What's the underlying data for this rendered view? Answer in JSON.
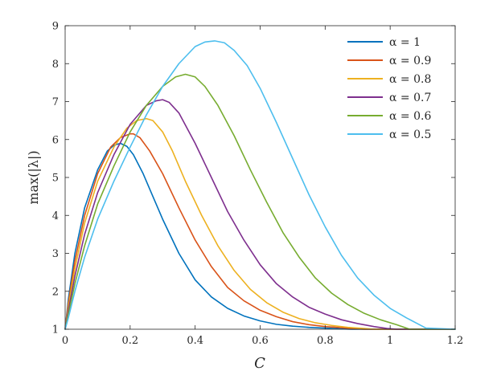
{
  "chart_data": {
    "type": "line",
    "xlabel": "C",
    "ylabel": "max(|λ|)",
    "xlim": [
      0,
      1.2
    ],
    "ylim": [
      1,
      9
    ],
    "xticks": [
      0,
      0.2,
      0.4,
      0.6,
      0.8,
      1,
      1.2
    ],
    "yticks": [
      1,
      2,
      3,
      4,
      5,
      6,
      7,
      8,
      9
    ],
    "xtick_labels": [
      "0",
      "0.2",
      "0.4",
      "0.6",
      "0.8",
      "1",
      "1.2"
    ],
    "ytick_labels": [
      "1",
      "2",
      "3",
      "4",
      "5",
      "6",
      "7",
      "8",
      "9"
    ],
    "grid": false,
    "legend_position": "top-right",
    "series": [
      {
        "name": "α = 1",
        "color": "#0072BD",
        "x": [
          0,
          0.01,
          0.03,
          0.06,
          0.1,
          0.13,
          0.15,
          0.17,
          0.19,
          0.21,
          0.24,
          0.27,
          0.3,
          0.35,
          0.4,
          0.45,
          0.5,
          0.55,
          0.6,
          0.65,
          0.7,
          0.75,
          0.8,
          0.85,
          0.88,
          1.0,
          1.2
        ],
        "y": [
          1,
          1.8,
          3.0,
          4.2,
          5.2,
          5.7,
          5.85,
          5.9,
          5.82,
          5.6,
          5.1,
          4.5,
          3.9,
          3.0,
          2.3,
          1.85,
          1.55,
          1.35,
          1.22,
          1.13,
          1.08,
          1.05,
          1.03,
          1.01,
          1.0,
          1.0,
          1.0
        ]
      },
      {
        "name": "α = 0.9",
        "color": "#D95319",
        "x": [
          0,
          0.01,
          0.03,
          0.06,
          0.1,
          0.14,
          0.17,
          0.2,
          0.21,
          0.23,
          0.26,
          0.3,
          0.35,
          0.4,
          0.45,
          0.5,
          0.55,
          0.6,
          0.65,
          0.7,
          0.75,
          0.8,
          0.85,
          0.88,
          0.92,
          1.0,
          1.2
        ],
        "y": [
          1,
          1.7,
          2.8,
          4.0,
          5.1,
          5.8,
          6.05,
          6.15,
          6.15,
          6.05,
          5.7,
          5.1,
          4.2,
          3.35,
          2.65,
          2.1,
          1.75,
          1.5,
          1.33,
          1.2,
          1.12,
          1.07,
          1.04,
          1.02,
          1.0,
          1.0,
          1.0
        ]
      },
      {
        "name": "α = 0.8",
        "color": "#EDB120",
        "x": [
          0,
          0.01,
          0.03,
          0.06,
          0.1,
          0.15,
          0.19,
          0.22,
          0.25,
          0.27,
          0.3,
          0.33,
          0.37,
          0.42,
          0.47,
          0.52,
          0.57,
          0.62,
          0.67,
          0.72,
          0.77,
          0.82,
          0.87,
          0.92,
          0.95,
          1.0,
          1.2
        ],
        "y": [
          1,
          1.6,
          2.6,
          3.8,
          4.9,
          5.8,
          6.3,
          6.5,
          6.55,
          6.5,
          6.2,
          5.7,
          4.9,
          4.0,
          3.2,
          2.55,
          2.05,
          1.7,
          1.45,
          1.28,
          1.17,
          1.1,
          1.05,
          1.02,
          1.0,
          1.0,
          1.0
        ]
      },
      {
        "name": "α = 0.7",
        "color": "#7E2F8E",
        "x": [
          0,
          0.01,
          0.03,
          0.06,
          0.1,
          0.15,
          0.2,
          0.25,
          0.28,
          0.3,
          0.32,
          0.35,
          0.4,
          0.45,
          0.5,
          0.55,
          0.6,
          0.65,
          0.7,
          0.75,
          0.8,
          0.85,
          0.9,
          0.95,
          0.99,
          1.02,
          1.2
        ],
        "y": [
          1,
          1.5,
          2.4,
          3.5,
          4.6,
          5.6,
          6.4,
          6.9,
          7.02,
          7.05,
          6.98,
          6.7,
          5.9,
          5.0,
          4.1,
          3.35,
          2.7,
          2.2,
          1.85,
          1.58,
          1.4,
          1.25,
          1.15,
          1.07,
          1.02,
          1.0,
          1.0
        ]
      },
      {
        "name": "α = 0.6",
        "color": "#77AC30",
        "x": [
          0,
          0.01,
          0.03,
          0.06,
          0.1,
          0.15,
          0.2,
          0.25,
          0.3,
          0.34,
          0.37,
          0.4,
          0.43,
          0.47,
          0.52,
          0.57,
          0.62,
          0.67,
          0.72,
          0.77,
          0.82,
          0.87,
          0.92,
          0.97,
          1.02,
          1.06,
          1.2
        ],
        "y": [
          1,
          1.4,
          2.2,
          3.2,
          4.3,
          5.3,
          6.2,
          6.9,
          7.4,
          7.65,
          7.72,
          7.65,
          7.4,
          6.9,
          6.1,
          5.2,
          4.35,
          3.55,
          2.9,
          2.35,
          1.95,
          1.65,
          1.42,
          1.25,
          1.12,
          1.0,
          1.0
        ]
      },
      {
        "name": "α = 0.5",
        "color": "#4DBEEE",
        "x": [
          0,
          0.01,
          0.03,
          0.06,
          0.1,
          0.15,
          0.2,
          0.25,
          0.3,
          0.35,
          0.4,
          0.43,
          0.46,
          0.49,
          0.52,
          0.56,
          0.6,
          0.65,
          0.7,
          0.75,
          0.8,
          0.85,
          0.9,
          0.95,
          1.0,
          1.05,
          1.09,
          1.11,
          1.2
        ],
        "y": [
          1,
          1.3,
          2.0,
          2.9,
          3.9,
          4.9,
          5.8,
          6.65,
          7.4,
          8.0,
          8.45,
          8.57,
          8.6,
          8.55,
          8.35,
          7.95,
          7.35,
          6.45,
          5.5,
          4.55,
          3.7,
          2.95,
          2.35,
          1.9,
          1.55,
          1.3,
          1.12,
          1.03,
          1.0
        ]
      }
    ]
  }
}
